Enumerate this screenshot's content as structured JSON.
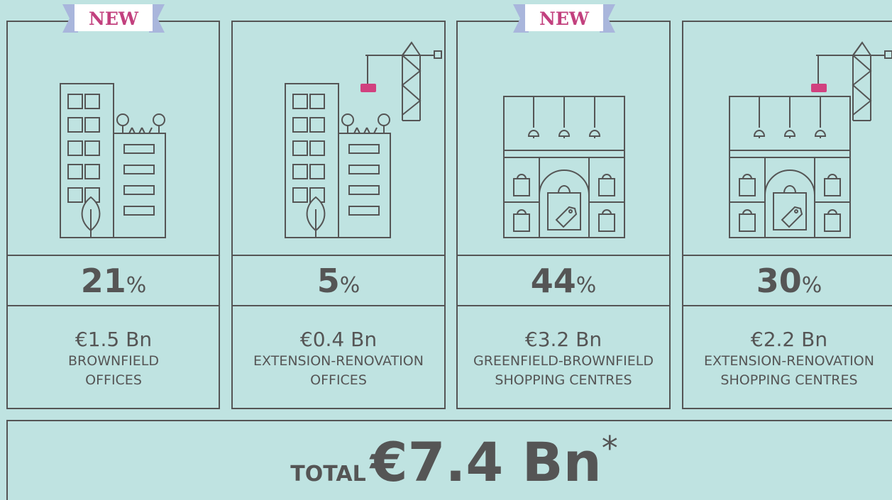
{
  "cards": [
    {
      "badge": "NEW",
      "percent": 21,
      "percent_unit": "%",
      "amount": "€1.5 Bn",
      "label_lines": [
        "BROWNFIELD",
        "OFFICES"
      ]
    },
    {
      "percent": 5,
      "percent_unit": "%",
      "amount": "€0.4 Bn",
      "label_lines": [
        "EXTENSION-RENOVATION",
        "OFFICES"
      ]
    },
    {
      "badge": "NEW",
      "percent": 44,
      "percent_unit": "%",
      "amount": "€3.2 Bn",
      "label_lines": [
        "GREENFIELD-BROWNFIELD",
        "SHOPPING CENTRES"
      ]
    },
    {
      "percent": 30,
      "percent_unit": "%",
      "amount": "€2.2 Bn",
      "label_lines": [
        "EXTENSION-RENOVATION",
        "SHOPPING CENTRES"
      ]
    }
  ],
  "total": {
    "label": "TOTAL",
    "amount": "€7.4 Bn",
    "footnote_mark": "*"
  }
}
